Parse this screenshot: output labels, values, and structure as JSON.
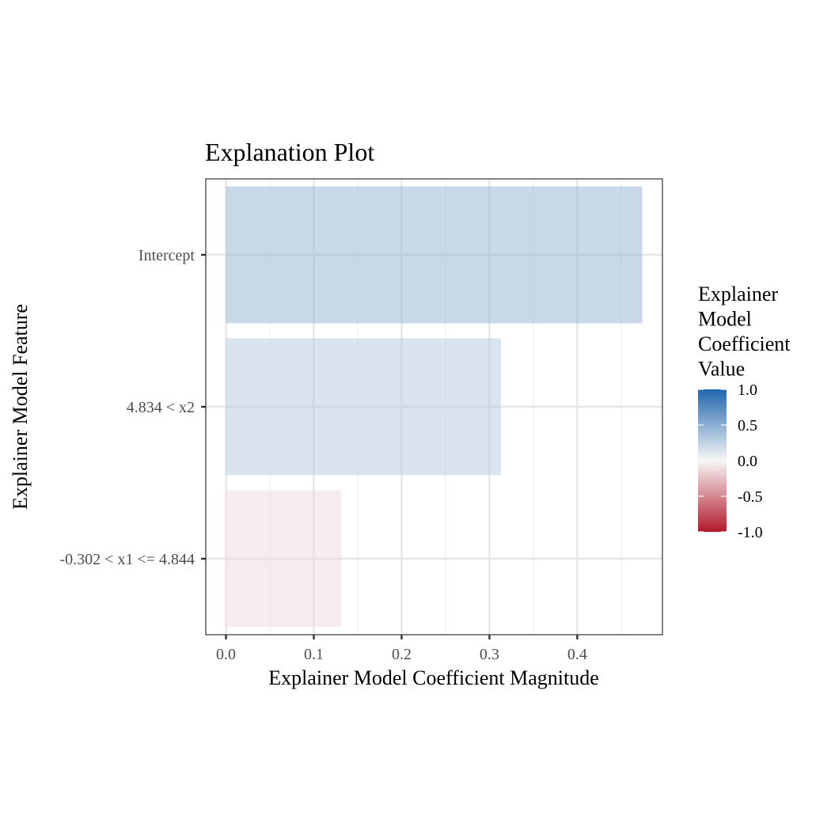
{
  "chart_data": {
    "type": "bar",
    "orientation": "horizontal",
    "title": "Explanation Plot",
    "xlabel": "Explainer Model Coefficient Magnitude",
    "ylabel": "Explainer Model Feature",
    "categories": [
      "Intercept",
      "4.834 < x2",
      "-0.302 < x1 <= 4.844"
    ],
    "values": [
      0.474,
      0.313,
      0.131
    ],
    "coefficients": [
      0.474,
      0.313,
      -0.131
    ],
    "xlim": [
      -0.023,
      0.497
    ],
    "xticks": [
      0.0,
      0.1,
      0.2,
      0.3,
      0.4
    ],
    "xtick_labels": [
      "0.0",
      "0.1",
      "0.2",
      "0.3",
      "0.4"
    ],
    "grid": true,
    "legend": {
      "title_lines": [
        "Explainer",
        "Model",
        "Coefficient",
        "Value"
      ],
      "type": "gradient",
      "placement": "right",
      "range": [
        -1.0,
        1.0
      ],
      "ticks": [
        1.0,
        0.5,
        0.0,
        -0.5,
        -1.0
      ],
      "tick_labels": [
        "1.0",
        "0.5",
        "0.0",
        "-0.5",
        "-1.0"
      ],
      "low_color": "#b2182b",
      "mid_color": "#f7f7f7",
      "high_color": "#2166ac"
    }
  }
}
